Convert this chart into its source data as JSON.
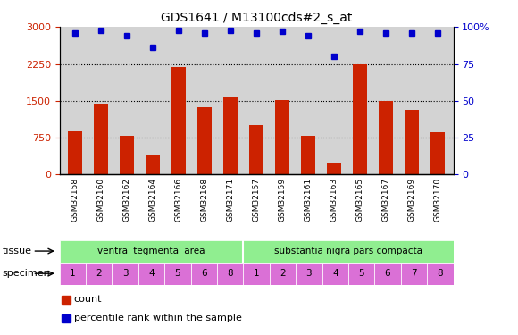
{
  "title": "GDS1641 / M13100cds#2_s_at",
  "categories": [
    "GSM32158",
    "GSM32160",
    "GSM32162",
    "GSM32164",
    "GSM32166",
    "GSM32168",
    "GSM32171",
    "GSM32157",
    "GSM32159",
    "GSM32161",
    "GSM32163",
    "GSM32165",
    "GSM32167",
    "GSM32169",
    "GSM32170"
  ],
  "counts": [
    880,
    1450,
    790,
    390,
    2180,
    1370,
    1570,
    1000,
    1510,
    790,
    220,
    2250,
    1500,
    1320,
    870
  ],
  "percentiles": [
    96,
    98,
    94,
    86,
    98,
    96,
    98,
    96,
    97,
    94,
    80,
    97,
    96,
    96,
    96
  ],
  "tissue_labels": [
    "ventral tegmental area",
    "substantia nigra pars compacta"
  ],
  "tissue_split": 7,
  "specimen_labels": [
    1,
    2,
    3,
    4,
    5,
    6,
    8,
    1,
    2,
    3,
    4,
    5,
    6,
    7,
    8
  ],
  "tissue_color": "#90ee90",
  "specimen_color": "#da70d6",
  "bar_color": "#cc2200",
  "dot_color": "#0000cc",
  "bg_color": "#d3d3d3",
  "xtick_bg": "#d3d3d3",
  "ylim_left": [
    0,
    3000
  ],
  "ylim_right": [
    0,
    100
  ],
  "yticks_left": [
    0,
    750,
    1500,
    2250,
    3000
  ],
  "yticks_right": [
    0,
    25,
    50,
    75,
    100
  ],
  "grid_lines": [
    750,
    1500,
    2250
  ],
  "legend_count": "count",
  "legend_pct": "percentile rank within the sample"
}
